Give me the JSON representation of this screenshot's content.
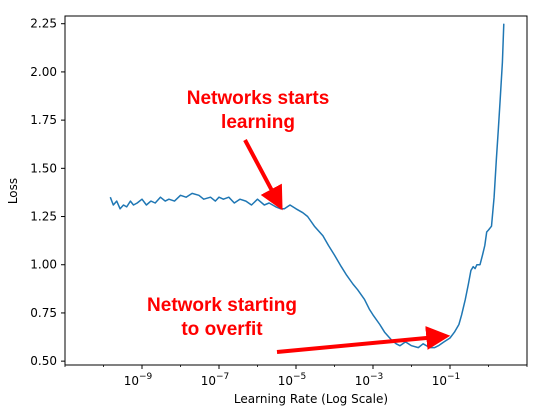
{
  "chart_data": {
    "type": "line",
    "xlabel": "Learning Rate (Log Scale)",
    "ylabel": "Loss",
    "xscale": "log",
    "xlim": [
      1e-11,
      10
    ],
    "ylim": [
      0.48,
      2.29
    ],
    "grid": false,
    "x_tick_labels": [
      {
        "value": 1e-09,
        "label": "10",
        "exp": "−9"
      },
      {
        "value": 1e-07,
        "label": "10",
        "exp": "−7"
      },
      {
        "value": 1e-05,
        "label": "10",
        "exp": "−5"
      },
      {
        "value": 0.001,
        "label": "10",
        "exp": "−3"
      },
      {
        "value": 0.1,
        "label": "10",
        "exp": "−1"
      }
    ],
    "y_ticks": [
      "0.50",
      "0.75",
      "1.00",
      "1.25",
      "1.50",
      "1.75",
      "2.00",
      "2.25"
    ],
    "series": [
      {
        "color": "#1f77b4",
        "x": [
          1.5e-10,
          1.8e-10,
          2.2e-10,
          2.7e-10,
          3.3e-10,
          4e-10,
          5e-10,
          6e-10,
          7.5e-10,
          1e-09,
          1.3e-09,
          1.7e-09,
          2.2e-09,
          3e-09,
          4e-09,
          5e-09,
          7e-09,
          1e-08,
          1.4e-08,
          2e-08,
          3e-08,
          4e-08,
          6e-08,
          8e-08,
          1e-07,
          1.3e-07,
          1.8e-07,
          2.5e-07,
          3.5e-07,
          5e-07,
          7e-07,
          1e-06,
          1.5e-06,
          2e-06,
          3e-06,
          4e-06,
          5e-06,
          7e-06,
          1e-05,
          1.5e-05,
          2e-05,
          3e-05,
          5e-05,
          7e-05,
          0.0001,
          0.00015,
          0.0002,
          0.0003,
          0.0004,
          0.0006,
          0.0008,
          0.001,
          0.0015,
          0.002,
          0.003,
          0.004,
          0.005,
          0.007,
          0.01,
          0.015,
          0.02,
          0.03,
          0.04,
          0.05,
          0.07,
          0.1,
          0.13,
          0.17,
          0.2,
          0.25,
          0.3,
          0.35,
          0.4,
          0.45,
          0.5,
          0.6,
          0.7,
          0.8,
          0.9,
          1.0,
          1.2,
          1.4,
          1.6,
          1.8,
          2.0,
          2.3,
          2.5
        ],
        "y": [
          1.35,
          1.31,
          1.33,
          1.29,
          1.31,
          1.3,
          1.33,
          1.31,
          1.32,
          1.34,
          1.31,
          1.33,
          1.32,
          1.35,
          1.33,
          1.34,
          1.33,
          1.36,
          1.35,
          1.37,
          1.36,
          1.34,
          1.35,
          1.33,
          1.35,
          1.34,
          1.35,
          1.32,
          1.34,
          1.33,
          1.31,
          1.34,
          1.31,
          1.32,
          1.3,
          1.29,
          1.29,
          1.31,
          1.29,
          1.27,
          1.25,
          1.2,
          1.15,
          1.1,
          1.05,
          0.99,
          0.95,
          0.9,
          0.87,
          0.82,
          0.77,
          0.74,
          0.69,
          0.65,
          0.61,
          0.59,
          0.58,
          0.6,
          0.58,
          0.57,
          0.59,
          0.57,
          0.57,
          0.58,
          0.6,
          0.62,
          0.65,
          0.69,
          0.74,
          0.82,
          0.9,
          0.97,
          0.99,
          0.98,
          1.0,
          1.0,
          1.05,
          1.1,
          1.17,
          1.18,
          1.2,
          1.35,
          1.55,
          1.7,
          1.85,
          2.05,
          2.25
        ]
      }
    ],
    "annotations": [
      {
        "lines": [
          "Networks starts",
          "learning"
        ],
        "color": "#ff0000",
        "arrow_to": {
          "x": 4e-06,
          "y": 1.3
        }
      },
      {
        "lines": [
          "Network starting",
          "to overfit"
        ],
        "color": "#ff0000",
        "arrow_to": {
          "x": 0.08,
          "y": 0.63
        }
      }
    ]
  }
}
